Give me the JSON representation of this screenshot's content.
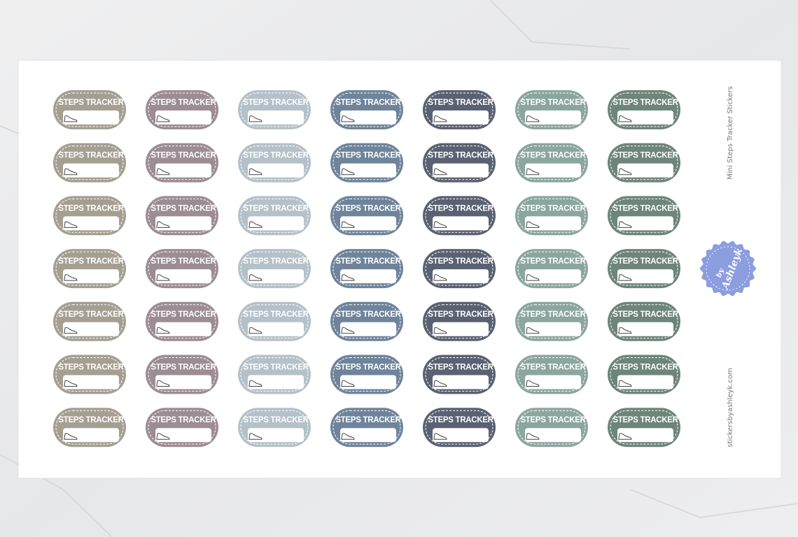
{
  "sticker": {
    "label": "STEPS TRACKER",
    "colors": [
      "#a59f92",
      "#9c8c93",
      "#b5c1c9",
      "#6f849b",
      "#5a6172",
      "#8ba69f",
      "#6d857a"
    ]
  },
  "side": {
    "title": "Mini Steps Tracker Stickers",
    "website": "stickersbyashleyk.com"
  },
  "badge": {
    "by": "by",
    "name": "Ashleyk"
  }
}
